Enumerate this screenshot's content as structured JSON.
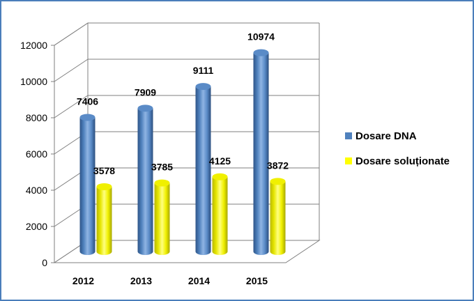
{
  "chart_data": {
    "type": "bar",
    "title": "",
    "xlabel": "",
    "ylabel": "",
    "categories": [
      "2012",
      "2013",
      "2014",
      "2015"
    ],
    "series": [
      {
        "name": "Dosare DNA",
        "values": [
          7406,
          7909,
          9111,
          10974
        ],
        "color": "#4f81bd"
      },
      {
        "name": "Dosare soluționate",
        "values": [
          3578,
          3785,
          4125,
          3872
        ],
        "color": "#ffff00"
      }
    ],
    "ylim": [
      0,
      12000
    ],
    "yticks": [
      "0",
      "2000",
      "4000",
      "6000",
      "8000",
      "10000",
      "12000"
    ],
    "grid": true,
    "legend_position": "right",
    "style": "3d-cylinder"
  }
}
